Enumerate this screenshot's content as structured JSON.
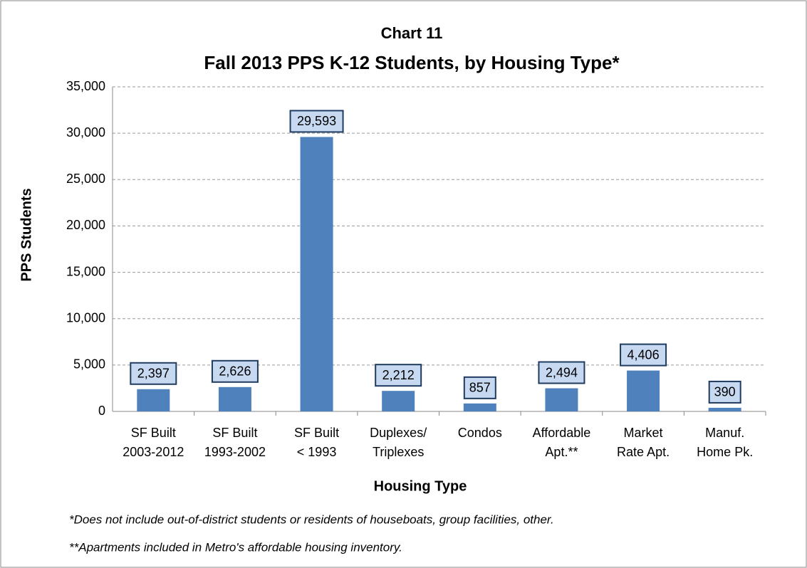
{
  "chart_data": {
    "type": "bar",
    "title": "Chart 11",
    "subtitle": "Fall 2013 PPS K-12 Students, by Housing Type*",
    "x_label": "Housing Type",
    "y_label": "PPS Students",
    "categories": [
      [
        "SF Built",
        "2003-2012"
      ],
      [
        "SF Built",
        "1993-2002"
      ],
      [
        "SF Built",
        "< 1993"
      ],
      [
        "Duplexes/",
        "Triplexes"
      ],
      [
        "Condos"
      ],
      [
        "Affordable",
        "Apt.**"
      ],
      [
        "Market",
        "Rate Apt."
      ],
      [
        "Manuf.",
        "Home Pk."
      ]
    ],
    "values": [
      2397,
      2626,
      29593,
      2212,
      857,
      2494,
      4406,
      390
    ],
    "value_labels": [
      "2,397",
      "2,626",
      "29,593",
      "2,212",
      "857",
      "2,494",
      "4,406",
      "390"
    ],
    "color": "#4f81bd",
    "ylim": [
      0,
      35000
    ],
    "yticks": [
      0,
      {
        "value": 5000,
        "label": "5,000"
      },
      {
        "value": 10000,
        "label": "10,000"
      },
      {
        "value": 15000,
        "label": "15,000"
      },
      {
        "value": 20000,
        "label": "20,000"
      },
      {
        "value": 25000,
        "label": "25,000"
      },
      {
        "value": 30000,
        "label": "30,000"
      },
      {
        "value": 35000,
        "label": "35,000"
      }
    ],
    "grid": true,
    "notes": [
      "*Does not include out-of-district students or residents of houseboats, group facilities, other.",
      "**Apartments included in Metro's affordable housing inventory."
    ]
  }
}
